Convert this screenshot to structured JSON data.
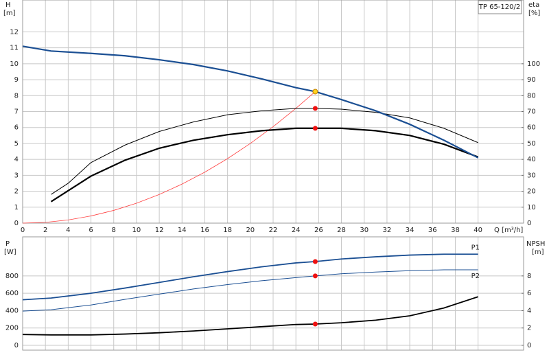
{
  "chart_data": [
    {
      "type": "line",
      "y_label": "H",
      "y_unit": "[m]",
      "y2_label": "eta",
      "y2_unit": "[%]",
      "x_label": "Q [m³/h]",
      "model": "TP 65-120/2",
      "xlim": [
        0,
        44
      ],
      "xticks": [
        0,
        2,
        4,
        6,
        8,
        10,
        12,
        14,
        16,
        18,
        20,
        22,
        24,
        26,
        28,
        30,
        32,
        34,
        36,
        38,
        40
      ],
      "ylim": [
        0,
        14
      ],
      "yticks": [
        0,
        1,
        2,
        3,
        4,
        5,
        6,
        7,
        8,
        9,
        10,
        11,
        12
      ],
      "y2lim": [
        0,
        140
      ],
      "y2ticks": [
        0,
        10,
        20,
        30,
        40,
        50,
        60,
        70,
        80,
        90,
        100
      ],
      "grid": true,
      "series": [
        {
          "color": "#ff4040",
          "width": 0.8,
          "x": [
            0,
            2,
            4,
            6,
            8,
            10,
            12,
            14,
            16,
            18,
            20,
            22,
            24,
            25.7
          ],
          "values": [
            0,
            0.05,
            0.2,
            0.45,
            0.8,
            1.25,
            1.8,
            2.45,
            3.2,
            4.05,
            5.0,
            6.05,
            7.2,
            8.25
          ]
        },
        {
          "color": "#000000",
          "width": 1,
          "axis": "y2",
          "x": [
            2.5,
            4,
            6,
            9,
            12,
            15,
            18,
            21,
            24,
            25.7,
            28,
            31,
            34,
            37,
            40
          ],
          "values": [
            18,
            25,
            38,
            49,
            57.5,
            63.5,
            68,
            70.5,
            72,
            72,
            71.5,
            69.5,
            66,
            59.5,
            50.5
          ]
        },
        {
          "color": "#000000",
          "width": 2.2,
          "axis": "y2",
          "x": [
            2.5,
            6,
            9,
            12,
            15,
            18,
            21,
            24,
            25.7,
            28,
            31,
            34,
            37,
            40
          ],
          "values": [
            13.5,
            29.5,
            39.5,
            47,
            52,
            55.5,
            58,
            59.5,
            59.5,
            59.5,
            58,
            55,
            49.5,
            41.5
          ]
        },
        {
          "color": "#1b4f93",
          "width": 2.2,
          "x": [
            0,
            2.5,
            6,
            9,
            12,
            15,
            18,
            21,
            24,
            25.7,
            28,
            31,
            34,
            37,
            40
          ],
          "values": [
            11.1,
            10.8,
            10.65,
            10.5,
            10.25,
            9.95,
            9.55,
            9.05,
            8.5,
            8.25,
            7.75,
            7.05,
            6.2,
            5.2,
            4.1
          ]
        }
      ],
      "points": [
        {
          "x": 25.7,
          "y": 8.25,
          "color": "#ffd21f"
        },
        {
          "x": 25.7,
          "y": 72,
          "color": "#ee1111",
          "axis": "y2"
        },
        {
          "x": 25.7,
          "y": 59.5,
          "color": "#ee1111",
          "axis": "y2"
        }
      ]
    },
    {
      "type": "line",
      "y_label": "P",
      "y_unit": "[W]",
      "y2_label": "NPSH",
      "y2_unit": "[m]",
      "xlim": [
        0,
        44
      ],
      "xticks": [
        0,
        2,
        4,
        6,
        8,
        10,
        12,
        14,
        16,
        18,
        20,
        22,
        24,
        26,
        28,
        30,
        32,
        34,
        36,
        38,
        40
      ],
      "ylim": [
        0,
        1250
      ],
      "yticks": [
        0,
        200,
        400,
        600,
        800
      ],
      "y2lim": [
        0,
        12.5
      ],
      "y2ticks": [
        0,
        2,
        4,
        6,
        8
      ],
      "grid": true,
      "series": [
        {
          "name": "P1",
          "color": "#1b4f93",
          "width": 1.8,
          "x": [
            0,
            2.5,
            6,
            9,
            12,
            15,
            18,
            21,
            24,
            25.7,
            28,
            31,
            34,
            37,
            40
          ],
          "values": [
            525,
            545,
            600,
            660,
            725,
            790,
            850,
            905,
            950,
            965,
            995,
            1020,
            1040,
            1050,
            1050
          ]
        },
        {
          "name": "P2",
          "color": "#1b4f93",
          "width": 1,
          "x": [
            0,
            2.5,
            6,
            9,
            12,
            15,
            18,
            21,
            24,
            25.7,
            28,
            31,
            34,
            37,
            40
          ],
          "values": [
            395,
            410,
            465,
            530,
            590,
            650,
            700,
            745,
            780,
            800,
            825,
            845,
            860,
            870,
            870
          ]
        },
        {
          "color": "#000000",
          "width": 1.8,
          "axis": "y2",
          "x": [
            0,
            2.5,
            6,
            9,
            12,
            15,
            18,
            21,
            24,
            25.7,
            28,
            31,
            34,
            37,
            40
          ],
          "values": [
            1.25,
            1.2,
            1.2,
            1.3,
            1.45,
            1.65,
            1.9,
            2.15,
            2.4,
            2.45,
            2.6,
            2.9,
            3.4,
            4.3,
            5.6
          ]
        }
      ],
      "points": [
        {
          "x": 25.7,
          "y": 965,
          "color": "#ee1111"
        },
        {
          "x": 25.7,
          "y": 800,
          "color": "#ee1111"
        },
        {
          "x": 25.7,
          "y": 2.45,
          "color": "#ee1111",
          "axis": "y2"
        }
      ]
    }
  ]
}
